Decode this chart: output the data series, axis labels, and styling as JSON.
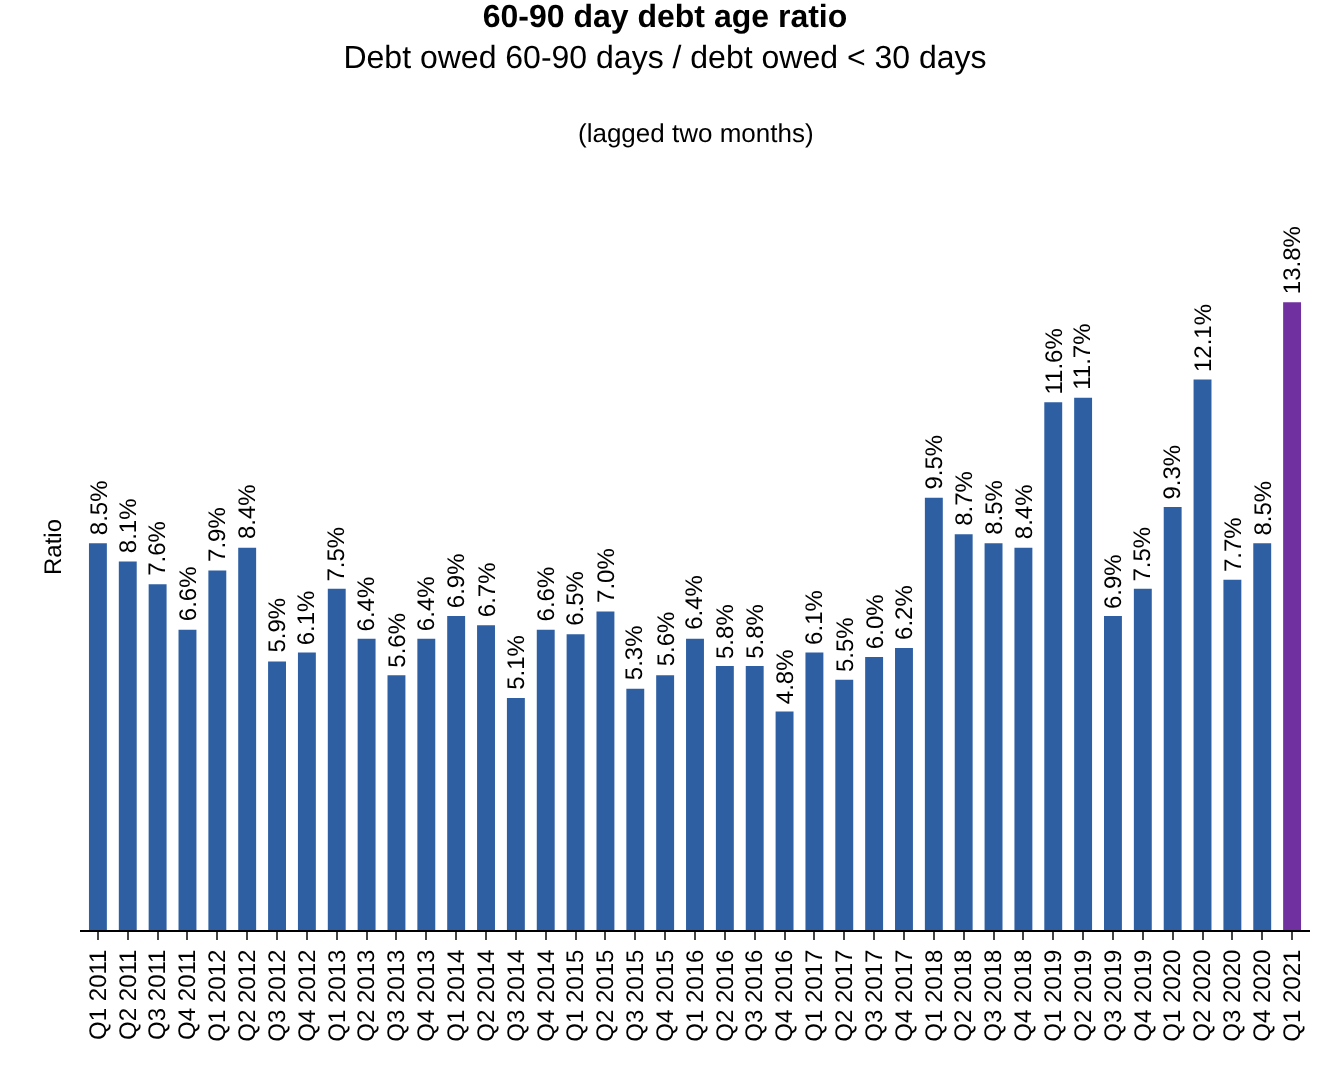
{
  "chart_data": {
    "type": "bar",
    "title": "60-90 day debt age ratio",
    "subtitle": "Debt owed 60-90 days / debt owed < 30 days",
    "annotations": [
      "(lagged two months)"
    ],
    "ylabel": "Ratio",
    "categories": [
      "Q1 2011",
      "Q2 2011",
      "Q3 2011",
      "Q4 2011",
      "Q1 2012",
      "Q2 2012",
      "Q3 2012",
      "Q4 2012",
      "Q1 2013",
      "Q2 2013",
      "Q3 2013",
      "Q4 2013",
      "Q1 2014",
      "Q2 2014",
      "Q3 2014",
      "Q4 2014",
      "Q1 2015",
      "Q2 2015",
      "Q3 2015",
      "Q4 2015",
      "Q1 2016",
      "Q2 2016",
      "Q3 2016",
      "Q4 2016",
      "Q1 2017",
      "Q2 2017",
      "Q3 2017",
      "Q4 2017",
      "Q1 2018",
      "Q2 2018",
      "Q3 2018",
      "Q4 2018",
      "Q1 2019",
      "Q2 2019",
      "Q3 2019",
      "Q4 2019",
      "Q1 2020",
      "Q2 2020",
      "Q3 2020",
      "Q4 2020",
      "Q1 2021"
    ],
    "values": [
      8.5,
      8.1,
      7.6,
      6.6,
      7.9,
      8.4,
      5.9,
      6.1,
      7.5,
      6.4,
      5.6,
      6.4,
      6.9,
      6.7,
      5.1,
      6.6,
      6.5,
      7.0,
      5.3,
      5.6,
      6.4,
      5.8,
      5.8,
      4.8,
      6.1,
      5.5,
      6.0,
      6.2,
      9.5,
      8.7,
      8.5,
      8.4,
      11.6,
      11.7,
      6.9,
      7.5,
      9.3,
      12.1,
      7.7,
      8.5,
      13.8
    ],
    "value_labels": [
      "8.5%",
      "8.1%",
      "7.6%",
      "6.6%",
      "7.9%",
      "8.4%",
      "5.9%",
      "6.1%",
      "7.5%",
      "6.4%",
      "5.6%",
      "6.4%",
      "6.9%",
      "6.7%",
      "5.1%",
      "6.6%",
      "6.5%",
      "7.0%",
      "5.3%",
      "5.6%",
      "6.4%",
      "5.8%",
      "5.8%",
      "4.8%",
      "6.1%",
      "5.5%",
      "6.0%",
      "6.2%",
      "9.5%",
      "8.7%",
      "8.5%",
      "8.4%",
      "11.6%",
      "11.7%",
      "6.9%",
      "7.5%",
      "9.3%",
      "12.1%",
      "7.7%",
      "8.5%",
      "13.8%"
    ],
    "colors": [
      "#2e5fa3",
      "#2e5fa3",
      "#2e5fa3",
      "#2e5fa3",
      "#2e5fa3",
      "#2e5fa3",
      "#2e5fa3",
      "#2e5fa3",
      "#2e5fa3",
      "#2e5fa3",
      "#2e5fa3",
      "#2e5fa3",
      "#2e5fa3",
      "#2e5fa3",
      "#2e5fa3",
      "#2e5fa3",
      "#2e5fa3",
      "#2e5fa3",
      "#2e5fa3",
      "#2e5fa3",
      "#2e5fa3",
      "#2e5fa3",
      "#2e5fa3",
      "#2e5fa3",
      "#2e5fa3",
      "#2e5fa3",
      "#2e5fa3",
      "#2e5fa3",
      "#2e5fa3",
      "#2e5fa3",
      "#2e5fa3",
      "#2e5fa3",
      "#2e5fa3",
      "#2e5fa3",
      "#2e5fa3",
      "#2e5fa3",
      "#2e5fa3",
      "#2e5fa3",
      "#2e5fa3",
      "#2e5fa3",
      "#7030a0"
    ],
    "grid": false
  }
}
